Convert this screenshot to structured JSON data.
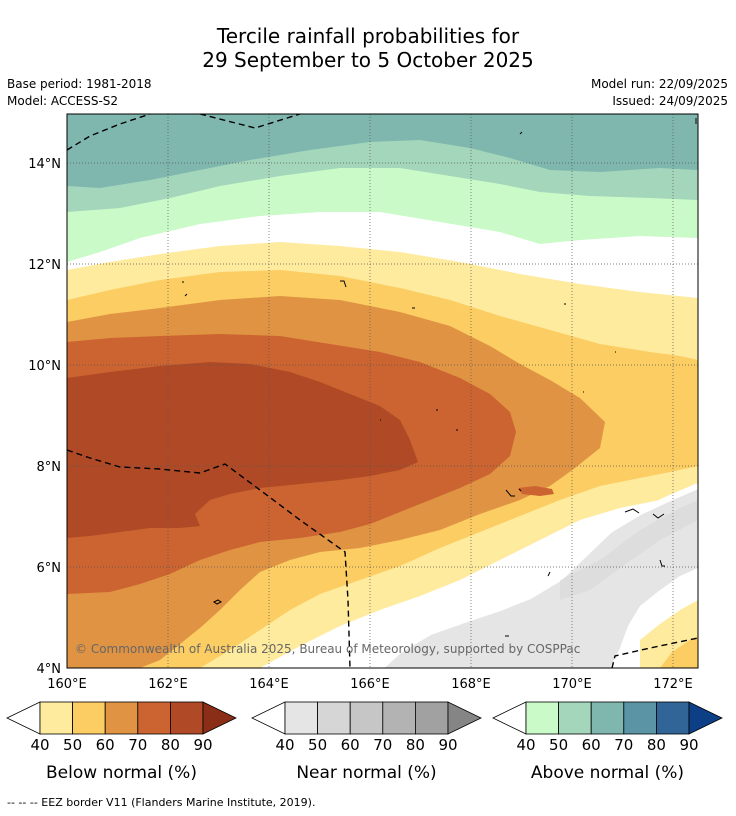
{
  "header": {
    "title_line1": "Tercile rainfall probabilities for",
    "title_line2": "29 September to 5 October 2025",
    "base_period": "Base period: 1981-2018",
    "model": "Model: ACCESS-S2",
    "model_run": "Model run: 22/09/2025",
    "issued": "Issued: 24/09/2025"
  },
  "map": {
    "lon_range": [
      160,
      172.5
    ],
    "lat_range": [
      4,
      15
    ],
    "lon_ticks": [
      "160°E",
      "162°E",
      "164°E",
      "166°E",
      "168°E",
      "170°E",
      "172°E"
    ],
    "lat_ticks": [
      "4°N",
      "6°N",
      "8°N",
      "10°N",
      "12°N",
      "14°N"
    ],
    "credit": "© Commonwealth of Australia 2025, Bureau of Meteorology, supported by COSPPac"
  },
  "colorbars": [
    {
      "title": "Below normal (%)",
      "ticks": [
        "40",
        "50",
        "60",
        "70",
        "80",
        "90"
      ],
      "colors": [
        "#feeb9e",
        "#fccd63",
        "#e09443",
        "#cb6430",
        "#b04a26"
      ],
      "under": "#ffffff",
      "over": "#8b2e18"
    },
    {
      "title": "Near normal (%)",
      "ticks": [
        "40",
        "50",
        "60",
        "70",
        "80",
        "90"
      ],
      "colors": [
        "#e5e5e5",
        "#d6d6d6",
        "#c6c6c6",
        "#b3b3b3",
        "#a1a1a1"
      ],
      "under": "#ffffff",
      "over": "#858585"
    },
    {
      "title": "Above normal (%)",
      "ticks": [
        "40",
        "50",
        "60",
        "70",
        "80",
        "90"
      ],
      "colors": [
        "#c9fac8",
        "#a3d6ba",
        "#7fb7ae",
        "#5b95a5",
        "#316597"
      ],
      "under": "#ffffff",
      "over": "#0c3f86"
    }
  ],
  "footnote": "--  --  -- EEZ border V11 (Flanders Marine Institute, 2019)."
}
